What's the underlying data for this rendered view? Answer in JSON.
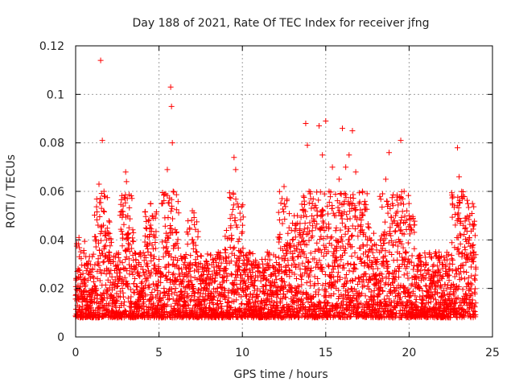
{
  "chart_data": {
    "type": "scatter",
    "title": "Day 188 of 2021, Rate Of TEC Index for receiver jfng",
    "xlabel": "GPS time / hours",
    "ylabel": "ROTI / TECUs",
    "xlim": [
      0,
      25
    ],
    "ylim": [
      0,
      0.12
    ],
    "x_ticks": [
      0,
      5,
      10,
      15,
      20,
      25
    ],
    "x_tick_labels": [
      "0",
      "5",
      "10",
      "15",
      "20",
      "25"
    ],
    "y_ticks": [
      0,
      0.02,
      0.04,
      0.06,
      0.08,
      0.1,
      0.12
    ],
    "y_tick_labels": [
      "0",
      "0.02",
      "0.04",
      "0.06",
      "0.08",
      "0.1",
      "0.12"
    ],
    "grid": true,
    "marker": "+",
    "color": "#ff0000",
    "series": [
      {
        "name": "ROTI",
        "points": [
          [
            0.1,
            0.027
          ],
          [
            0.2,
            0.041
          ],
          [
            0.3,
            0.018
          ],
          [
            0.5,
            0.022
          ],
          [
            0.7,
            0.012
          ],
          [
            1.0,
            0.025
          ],
          [
            1.2,
            0.019
          ],
          [
            1.4,
            0.063
          ],
          [
            1.5,
            0.114
          ],
          [
            1.55,
            0.053
          ],
          [
            1.6,
            0.081
          ],
          [
            1.7,
            0.06
          ],
          [
            1.8,
            0.042
          ],
          [
            2.0,
            0.035
          ],
          [
            2.2,
            0.015
          ],
          [
            2.5,
            0.028
          ],
          [
            2.8,
            0.02
          ],
          [
            3.0,
            0.068
          ],
          [
            3.05,
            0.064
          ],
          [
            3.2,
            0.045
          ],
          [
            3.5,
            0.022
          ],
          [
            3.8,
            0.03
          ],
          [
            4.0,
            0.018
          ],
          [
            4.2,
            0.024
          ],
          [
            4.5,
            0.055
          ],
          [
            4.8,
            0.026
          ],
          [
            5.0,
            0.032
          ],
          [
            5.3,
            0.02
          ],
          [
            5.5,
            0.069
          ],
          [
            5.7,
            0.103
          ],
          [
            5.75,
            0.095
          ],
          [
            5.8,
            0.08
          ],
          [
            5.85,
            0.06
          ],
          [
            6.0,
            0.02
          ],
          [
            6.5,
            0.025
          ],
          [
            7.0,
            0.052
          ],
          [
            7.2,
            0.035
          ],
          [
            7.5,
            0.018
          ],
          [
            8.0,
            0.022
          ],
          [
            8.5,
            0.02
          ],
          [
            9.0,
            0.028
          ],
          [
            9.3,
            0.045
          ],
          [
            9.5,
            0.074
          ],
          [
            9.6,
            0.069
          ],
          [
            9.7,
            0.055
          ],
          [
            10.0,
            0.02
          ],
          [
            10.5,
            0.025
          ],
          [
            11.0,
            0.03
          ],
          [
            11.5,
            0.035
          ],
          [
            12.0,
            0.028
          ],
          [
            12.5,
            0.062
          ],
          [
            12.8,
            0.045
          ],
          [
            13.0,
            0.04
          ],
          [
            13.3,
            0.05
          ],
          [
            13.5,
            0.038
          ],
          [
            13.8,
            0.088
          ],
          [
            13.9,
            0.079
          ],
          [
            14.0,
            0.06
          ],
          [
            14.2,
            0.055
          ],
          [
            14.4,
            0.045
          ],
          [
            14.6,
            0.087
          ],
          [
            14.8,
            0.075
          ],
          [
            15.0,
            0.089
          ],
          [
            15.2,
            0.06
          ],
          [
            15.4,
            0.07
          ],
          [
            15.6,
            0.05
          ],
          [
            15.8,
            0.065
          ],
          [
            16.0,
            0.086
          ],
          [
            16.2,
            0.07
          ],
          [
            16.4,
            0.075
          ],
          [
            16.6,
            0.085
          ],
          [
            16.8,
            0.068
          ],
          [
            17.0,
            0.055
          ],
          [
            17.2,
            0.06
          ],
          [
            17.4,
            0.035
          ],
          [
            17.6,
            0.045
          ],
          [
            17.8,
            0.03
          ],
          [
            18.0,
            0.025
          ],
          [
            18.3,
            0.04
          ],
          [
            18.6,
            0.065
          ],
          [
            18.8,
            0.076
          ],
          [
            19.0,
            0.055
          ],
          [
            19.3,
            0.035
          ],
          [
            19.5,
            0.081
          ],
          [
            19.7,
            0.06
          ],
          [
            20.0,
            0.05
          ],
          [
            20.3,
            0.025
          ],
          [
            20.6,
            0.02
          ],
          [
            21.0,
            0.03
          ],
          [
            21.3,
            0.025
          ],
          [
            21.6,
            0.035
          ],
          [
            22.0,
            0.03
          ],
          [
            22.3,
            0.025
          ],
          [
            22.6,
            0.03
          ],
          [
            22.9,
            0.078
          ],
          [
            23.0,
            0.066
          ],
          [
            23.2,
            0.057
          ],
          [
            23.4,
            0.045
          ],
          [
            23.6,
            0.04
          ],
          [
            23.8,
            0.055
          ],
          [
            24.0,
            0.028
          ]
        ],
        "baseline_band": [
          0.008,
          0.035
        ]
      }
    ]
  }
}
